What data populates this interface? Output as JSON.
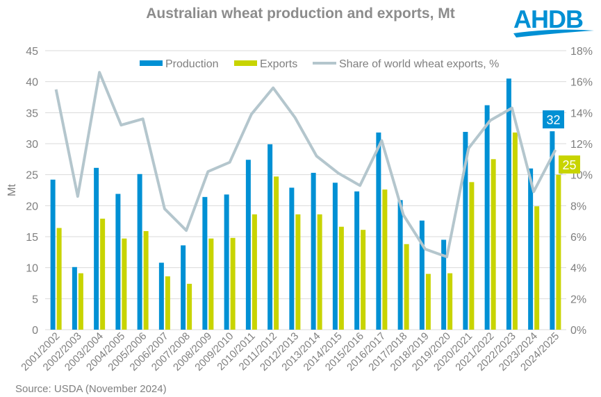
{
  "chart_data": {
    "type": "bar",
    "title": "Australian wheat production and exports, Mt",
    "ylabel": "Mt",
    "ylim": [
      0,
      45
    ],
    "y2lim": [
      0,
      18
    ],
    "yticks": [
      "0",
      "5",
      "10",
      "15",
      "20",
      "25",
      "30",
      "35",
      "40",
      "45"
    ],
    "y2ticks": [
      "0%",
      "2%",
      "4%",
      "6%",
      "8%",
      "10%",
      "12%",
      "14%",
      "16%",
      "18%"
    ],
    "grid": true,
    "legend": "top",
    "categories": [
      "2001/2002",
      "2002/2003",
      "2003/2004",
      "2004/2005",
      "2005/2006",
      "2006/2007",
      "2007/2008",
      "2008/2009",
      "2009/2010",
      "2010/2011",
      "2011/2012",
      "2012/2013",
      "2013/2014",
      "2014/2015",
      "2015/2016",
      "2016/2017",
      "2017/2018",
      "2018/2019",
      "2019/2020",
      "2020/2021",
      "2021/2022",
      "2022/2023",
      "2023/2024",
      "2024/2025"
    ],
    "series": [
      {
        "name": "Production",
        "type": "bar",
        "color": "#0090d4",
        "values": [
          24.2,
          10.1,
          26.1,
          21.9,
          25.1,
          10.8,
          13.6,
          21.4,
          21.8,
          27.4,
          29.9,
          22.9,
          25.3,
          23.7,
          22.3,
          31.8,
          20.9,
          17.6,
          14.5,
          31.9,
          36.2,
          40.5,
          26.0,
          32.0
        ]
      },
      {
        "name": "Exports",
        "type": "bar",
        "color": "#c8d400",
        "values": [
          16.4,
          9.1,
          17.9,
          14.7,
          15.9,
          8.6,
          7.4,
          14.7,
          14.8,
          18.6,
          24.7,
          18.6,
          18.6,
          16.6,
          16.1,
          22.6,
          13.8,
          9.0,
          9.1,
          23.8,
          27.5,
          31.8,
          19.9,
          25.0
        ]
      },
      {
        "name": "Share of world wheat exports, %",
        "type": "line",
        "axis": "right",
        "color": "#b4c6cd",
        "values": [
          15.5,
          8.6,
          16.6,
          13.2,
          13.6,
          7.8,
          6.4,
          10.2,
          10.8,
          13.9,
          15.6,
          13.7,
          11.2,
          10.1,
          9.3,
          12.2,
          7.4,
          5.2,
          4.7,
          11.7,
          13.5,
          14.3,
          8.9,
          11.6
        ]
      }
    ],
    "annotations": [
      {
        "series": "Production",
        "category": "2024/2025",
        "text": "32"
      },
      {
        "series": "Exports",
        "category": "2024/2025",
        "text": "25"
      }
    ]
  },
  "source": "Source: USDA (November 2024)",
  "logo": "AHDB",
  "colors": {
    "grid": "#d9d9d9",
    "axis_text": "#7f7f7f"
  }
}
